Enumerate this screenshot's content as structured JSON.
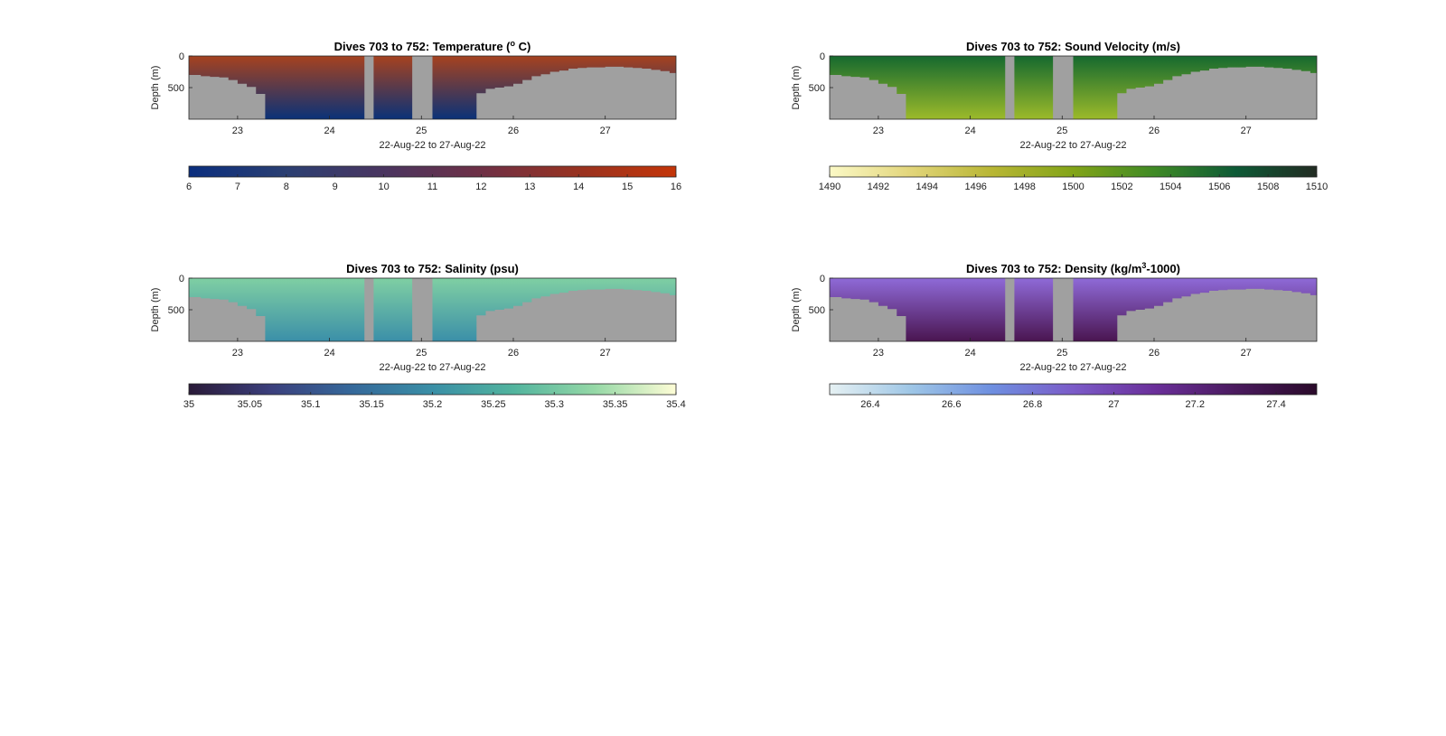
{
  "chart_data": [
    {
      "id": "temperature",
      "type": "heatmap",
      "title": "Dives 703 to 752: Temperature (",
      "title_sup": "o",
      "title_end": " C)",
      "xlabel": "22-Aug-22 to 27-Aug-22",
      "ylabel": "Depth (m)",
      "xlim": [
        22.47,
        27.77
      ],
      "ylim": [
        0,
        1000
      ],
      "y_reversed": true,
      "xticks": [
        23,
        24,
        25,
        26,
        27
      ],
      "yticks": [
        0,
        500
      ],
      "colorbar": {
        "min": 6,
        "max": 16,
        "ticks": [
          "6",
          "7",
          "8",
          "9",
          "10",
          "11",
          "12",
          "13",
          "14",
          "15",
          "16"
        ],
        "colors": [
          "#0a2e7e",
          "#2b3f72",
          "#4a3560",
          "#6e3046",
          "#983220",
          "#c43508"
        ]
      },
      "surface_color": "#a6421f",
      "deep_color": "#0a3278",
      "gap_color": "#a0a0a0",
      "gaps": [
        [
          24.38,
          24.48
        ],
        [
          24.9,
          25.12
        ]
      ],
      "bottom_profile": {
        "x": [
          22.47,
          22.6,
          22.7,
          22.8,
          22.9,
          23.0,
          23.1,
          23.2,
          23.3,
          25.5,
          25.6,
          25.7,
          25.8,
          25.9,
          26.0,
          26.1,
          26.2,
          26.3,
          26.4,
          26.5,
          26.6,
          26.7,
          26.8,
          26.9,
          27.0,
          27.1,
          27.2,
          27.3,
          27.4,
          27.5,
          27.6,
          27.7,
          27.77
        ],
        "depth": [
          300,
          320,
          330,
          340,
          380,
          440,
          490,
          600,
          1000,
          1000,
          590,
          520,
          500,
          480,
          440,
          380,
          320,
          290,
          250,
          230,
          200,
          190,
          180,
          180,
          170,
          170,
          180,
          190,
          200,
          220,
          240,
          270,
          290
        ]
      }
    },
    {
      "id": "sound_velocity",
      "type": "heatmap",
      "title": "Dives 703 to 752: Sound Velocity (m/s)",
      "title_sup": "",
      "title_end": "",
      "xlabel": "22-Aug-22 to 27-Aug-22",
      "ylabel": "Depth (m)",
      "xlim": [
        22.47,
        27.77
      ],
      "ylim": [
        0,
        1000
      ],
      "y_reversed": true,
      "xticks": [
        23,
        24,
        25,
        26,
        27
      ],
      "yticks": [
        0,
        500
      ],
      "colorbar": {
        "min": 1490,
        "max": 1510,
        "ticks": [
          "1490",
          "1492",
          "1494",
          "1496",
          "1498",
          "1500",
          "1502",
          "1504",
          "1506",
          "1508",
          "1510"
        ],
        "colors": [
          "#fbf9c6",
          "#e2d57a",
          "#b8b634",
          "#82a418",
          "#3f8a25",
          "#0d5a36",
          "#222b22"
        ]
      },
      "surface_color": "#15692f",
      "deep_color": "#9cba2a",
      "gap_color": "#a0a0a0",
      "gaps": [
        [
          24.38,
          24.48
        ],
        [
          24.9,
          25.12
        ]
      ],
      "bottom_profile": {
        "x": [
          22.47,
          22.6,
          22.7,
          22.8,
          22.9,
          23.0,
          23.1,
          23.2,
          23.3,
          25.5,
          25.6,
          25.7,
          25.8,
          25.9,
          26.0,
          26.1,
          26.2,
          26.3,
          26.4,
          26.5,
          26.6,
          26.7,
          26.8,
          26.9,
          27.0,
          27.1,
          27.2,
          27.3,
          27.4,
          27.5,
          27.6,
          27.7,
          27.77
        ],
        "depth": [
          300,
          320,
          330,
          340,
          380,
          440,
          490,
          600,
          1000,
          1000,
          590,
          520,
          500,
          480,
          440,
          380,
          320,
          290,
          250,
          230,
          200,
          190,
          180,
          180,
          170,
          170,
          180,
          190,
          200,
          220,
          240,
          270,
          290
        ]
      }
    },
    {
      "id": "salinity",
      "type": "heatmap",
      "title": "Dives 703 to 752: Salinity (psu)",
      "title_sup": "",
      "title_end": "",
      "xlabel": "22-Aug-22 to 27-Aug-22",
      "ylabel": "Depth (m)",
      "xlim": [
        22.47,
        27.77
      ],
      "ylim": [
        0,
        1000
      ],
      "y_reversed": true,
      "xticks": [
        23,
        24,
        25,
        26,
        27
      ],
      "yticks": [
        0,
        500
      ],
      "colorbar": {
        "min": 35,
        "max": 35.4,
        "ticks": [
          "35",
          "35.05",
          "35.1",
          "35.15",
          "35.2",
          "35.25",
          "35.3",
          "35.35",
          "35.4"
        ],
        "colors": [
          "#2a1a38",
          "#3b3f7c",
          "#35689a",
          "#3a8fa6",
          "#52b49e",
          "#95d8a6",
          "#fefdd6"
        ]
      },
      "surface_color": "#7fcfa3",
      "deep_color": "#3b8fa8",
      "gap_color": "#a0a0a0",
      "gaps": [
        [
          24.38,
          24.48
        ],
        [
          24.9,
          25.12
        ]
      ],
      "bottom_profile": {
        "x": [
          22.47,
          22.6,
          22.7,
          22.8,
          22.9,
          23.0,
          23.1,
          23.2,
          23.3,
          25.5,
          25.6,
          25.7,
          25.8,
          25.9,
          26.0,
          26.1,
          26.2,
          26.3,
          26.4,
          26.5,
          26.6,
          26.7,
          26.8,
          26.9,
          27.0,
          27.1,
          27.2,
          27.3,
          27.4,
          27.5,
          27.6,
          27.7,
          27.77
        ],
        "depth": [
          300,
          320,
          330,
          340,
          380,
          440,
          490,
          600,
          1000,
          1000,
          590,
          520,
          500,
          480,
          440,
          380,
          320,
          290,
          250,
          230,
          200,
          190,
          180,
          180,
          170,
          170,
          180,
          190,
          200,
          220,
          240,
          270,
          290
        ]
      }
    },
    {
      "id": "density",
      "type": "heatmap",
      "title": "Dives 703 to 752: Density (kg/m",
      "title_sup": "3",
      "title_end": "-1000)",
      "xlabel": "22-Aug-22 to 27-Aug-22",
      "ylabel": "Depth (m)",
      "xlim": [
        22.47,
        27.77
      ],
      "ylim": [
        0,
        1000
      ],
      "y_reversed": true,
      "xticks": [
        23,
        24,
        25,
        26,
        27
      ],
      "yticks": [
        0,
        500
      ],
      "colorbar": {
        "min": 26.3,
        "max": 27.5,
        "ticks": [
          "26.4",
          "26.6",
          "26.8",
          "27",
          "27.2",
          "27.4"
        ],
        "colors": [
          "#e6f1f3",
          "#9ec6e6",
          "#6e8fe0",
          "#7b5bc8",
          "#6a2f9a",
          "#4a1a5e",
          "#2a0a2a"
        ]
      },
      "surface_color": "#8f6ad8",
      "deep_color": "#4a1550",
      "gap_color": "#a0a0a0",
      "gaps": [
        [
          24.38,
          24.48
        ],
        [
          24.9,
          25.12
        ]
      ],
      "bottom_profile": {
        "x": [
          22.47,
          22.6,
          22.7,
          22.8,
          22.9,
          23.0,
          23.1,
          23.2,
          23.3,
          25.5,
          25.6,
          25.7,
          25.8,
          25.9,
          26.0,
          26.1,
          26.2,
          26.3,
          26.4,
          26.5,
          26.6,
          26.7,
          26.8,
          26.9,
          27.0,
          27.1,
          27.2,
          27.3,
          27.4,
          27.5,
          27.6,
          27.7,
          27.77
        ],
        "depth": [
          300,
          320,
          330,
          340,
          380,
          440,
          490,
          600,
          1000,
          1000,
          590,
          520,
          500,
          480,
          440,
          380,
          320,
          290,
          250,
          230,
          200,
          190,
          180,
          180,
          170,
          170,
          180,
          190,
          200,
          220,
          240,
          270,
          290
        ]
      }
    }
  ]
}
